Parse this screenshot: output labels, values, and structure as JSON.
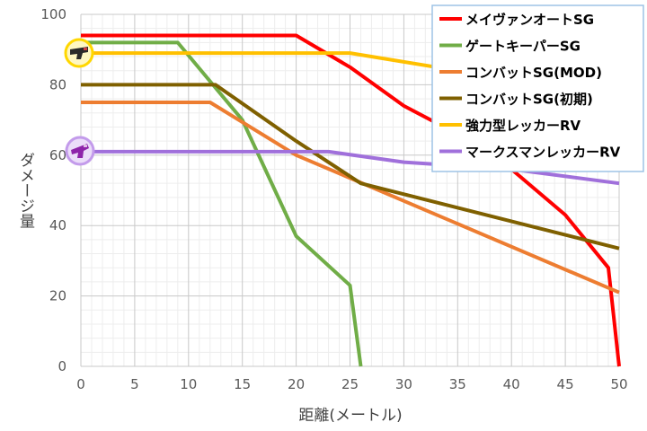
{
  "chart_data": {
    "type": "line",
    "xlabel": "距離(メートル)",
    "ylabel": "ダメージ量",
    "xlim": [
      0,
      50
    ],
    "ylim": [
      0,
      100
    ],
    "x_ticks": [
      "0",
      "5",
      "10",
      "15",
      "20",
      "25",
      "30",
      "35",
      "40",
      "45",
      "50"
    ],
    "y_ticks": [
      "0",
      "20",
      "40",
      "60",
      "80",
      "100"
    ],
    "grid": true,
    "legend_position": "top-right",
    "series": [
      {
        "name": "メイヴァンオートSG",
        "color": "#FF0000",
        "points": [
          [
            0,
            94
          ],
          [
            20,
            94
          ],
          [
            25,
            85
          ],
          [
            30,
            74
          ],
          [
            35,
            66
          ],
          [
            40,
            56
          ],
          [
            45,
            43
          ],
          [
            49,
            28
          ],
          [
            50,
            0
          ]
        ]
      },
      {
        "name": "ゲートキーパーSG",
        "color": "#70AD47",
        "points": [
          [
            0,
            92
          ],
          [
            9,
            92
          ],
          [
            15,
            70
          ],
          [
            20,
            37
          ],
          [
            25,
            23
          ],
          [
            26,
            0
          ]
        ]
      },
      {
        "name": "コンバットSG(MOD)",
        "color": "#ED7D31",
        "points": [
          [
            0,
            75
          ],
          [
            12,
            75
          ],
          [
            20,
            60
          ],
          [
            50,
            21
          ]
        ]
      },
      {
        "name": "コンバットSG(初期)",
        "color": "#7F6000",
        "points": [
          [
            0,
            80
          ],
          [
            12.5,
            80
          ],
          [
            20,
            64
          ],
          [
            26,
            52
          ],
          [
            50,
            33.5
          ]
        ]
      },
      {
        "name": "強力型レッカーRV",
        "color": "#FFC000",
        "points": [
          [
            0,
            89
          ],
          [
            25,
            89
          ],
          [
            35,
            84
          ]
        ]
      },
      {
        "name": "マークスマンレッカーRV",
        "color": "#A070DB",
        "points": [
          [
            0,
            61
          ],
          [
            23,
            61
          ],
          [
            30,
            58
          ],
          [
            40,
            56
          ],
          [
            50,
            52
          ]
        ]
      }
    ]
  },
  "icons": [
    {
      "name": "shotgun-weapon-icon",
      "series": "強力型レッカーRV",
      "ring_color": "#FFD700"
    },
    {
      "name": "purple-weapon-icon",
      "series": "マークスマンレッカーRV",
      "ring_color": "#C39BEB"
    }
  ]
}
